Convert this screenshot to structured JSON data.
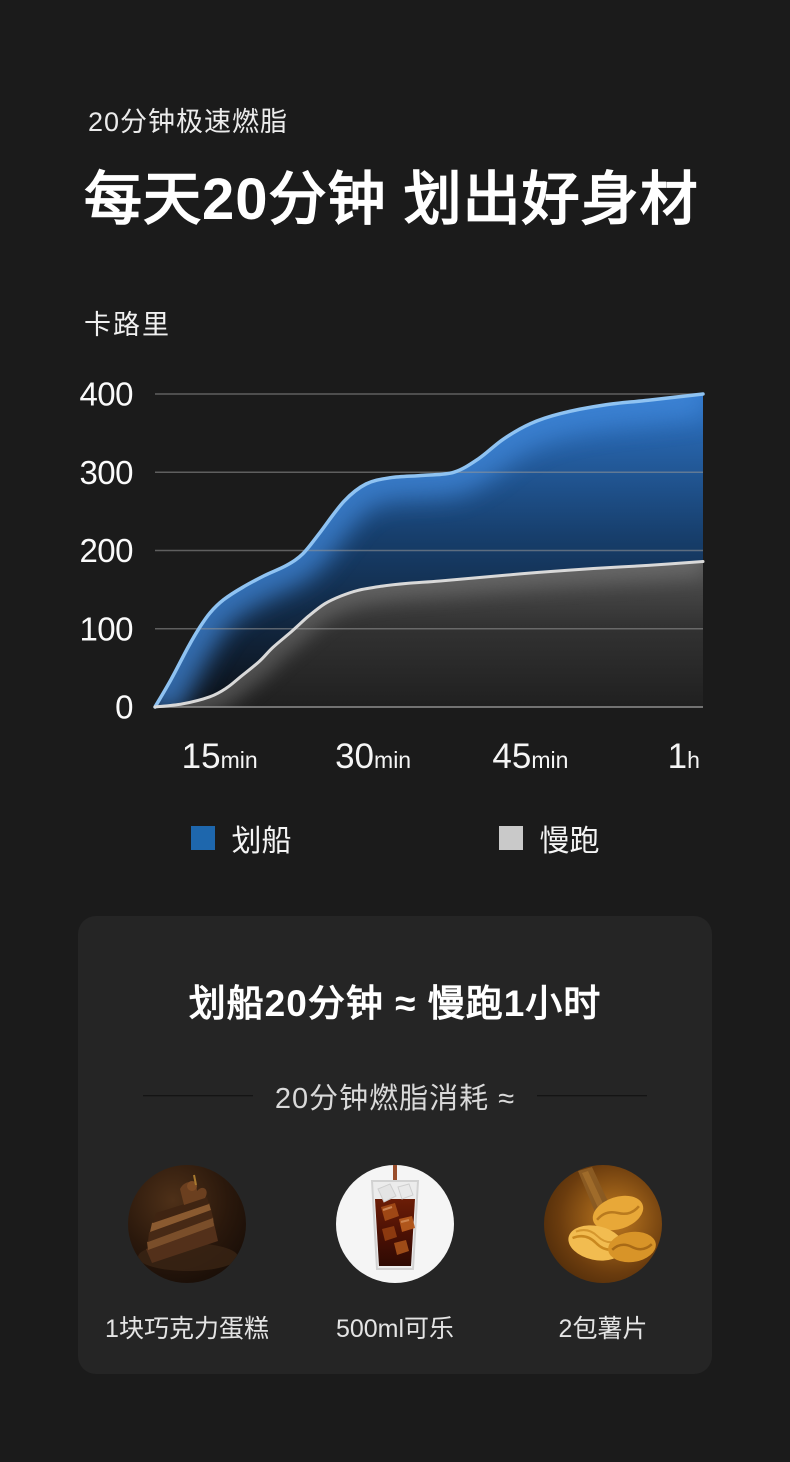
{
  "header": {
    "tagline": "20分钟极速燃脂",
    "title": "每天20分钟 划出好身材"
  },
  "chart_data": {
    "type": "area",
    "title": "",
    "xlabel": "",
    "ylabel": "卡路里",
    "ylim": [
      0,
      400
    ],
    "y_ticks": [
      400,
      300,
      200,
      100,
      0
    ],
    "x_ticks": [
      {
        "label": "15",
        "unit": "min",
        "pos": 0.118
      },
      {
        "label": "30",
        "unit": "min",
        "pos": 0.398
      },
      {
        "label": "45",
        "unit": "min",
        "pos": 0.685
      },
      {
        "label": "1",
        "unit": "h",
        "pos": 0.965
      }
    ],
    "grid": "horizontal",
    "grid_color": "#979797",
    "legend_position": "bottom",
    "series": [
      {
        "name": "划船",
        "swatch": "#1e67ad",
        "stroke": "#8fc3f2",
        "glow": "#3f86d8",
        "fill_top": "#2e74c6",
        "fill_mid": "#173f6d",
        "fill_bottom": "#0c1016",
        "points": [
          [
            0,
            0
          ],
          [
            0.03,
            36
          ],
          [
            0.06,
            76
          ],
          [
            0.08,
            100
          ],
          [
            0.1,
            120
          ],
          [
            0.125,
            137
          ],
          [
            0.16,
            153
          ],
          [
            0.2,
            168
          ],
          [
            0.24,
            181
          ],
          [
            0.27,
            196
          ],
          [
            0.3,
            222
          ],
          [
            0.345,
            263
          ],
          [
            0.385,
            285
          ],
          [
            0.43,
            293
          ],
          [
            0.49,
            296
          ],
          [
            0.545,
            300
          ],
          [
            0.59,
            317
          ],
          [
            0.635,
            342
          ],
          [
            0.685,
            362
          ],
          [
            0.74,
            375
          ],
          [
            0.82,
            386
          ],
          [
            0.9,
            392
          ],
          [
            1,
            400
          ]
        ]
      },
      {
        "name": "慢跑",
        "swatch": "#c9c9c9",
        "stroke": "#d9d9d9",
        "glow": "#7d7d7d",
        "fill_top": "#545454",
        "fill_mid": "#323232",
        "fill_bottom": "#202020",
        "points": [
          [
            0,
            0
          ],
          [
            0.05,
            4
          ],
          [
            0.1,
            13
          ],
          [
            0.13,
            24
          ],
          [
            0.155,
            38
          ],
          [
            0.19,
            58
          ],
          [
            0.215,
            76
          ],
          [
            0.25,
            97
          ],
          [
            0.28,
            116
          ],
          [
            0.31,
            132
          ],
          [
            0.34,
            142
          ],
          [
            0.37,
            149
          ],
          [
            0.41,
            154
          ],
          [
            0.46,
            158
          ],
          [
            0.52,
            161
          ],
          [
            0.6,
            166
          ],
          [
            0.7,
            172
          ],
          [
            0.8,
            177
          ],
          [
            0.9,
            181
          ],
          [
            1,
            186
          ]
        ]
      }
    ]
  },
  "comparison_card": {
    "title": "划船20分钟 ≈ 慢跑1小时",
    "subtitle": "20分钟燃脂消耗 ≈",
    "items": [
      {
        "label": "1块巧克力蛋糕"
      },
      {
        "label": "500ml可乐"
      },
      {
        "label": "2包薯片"
      }
    ]
  }
}
